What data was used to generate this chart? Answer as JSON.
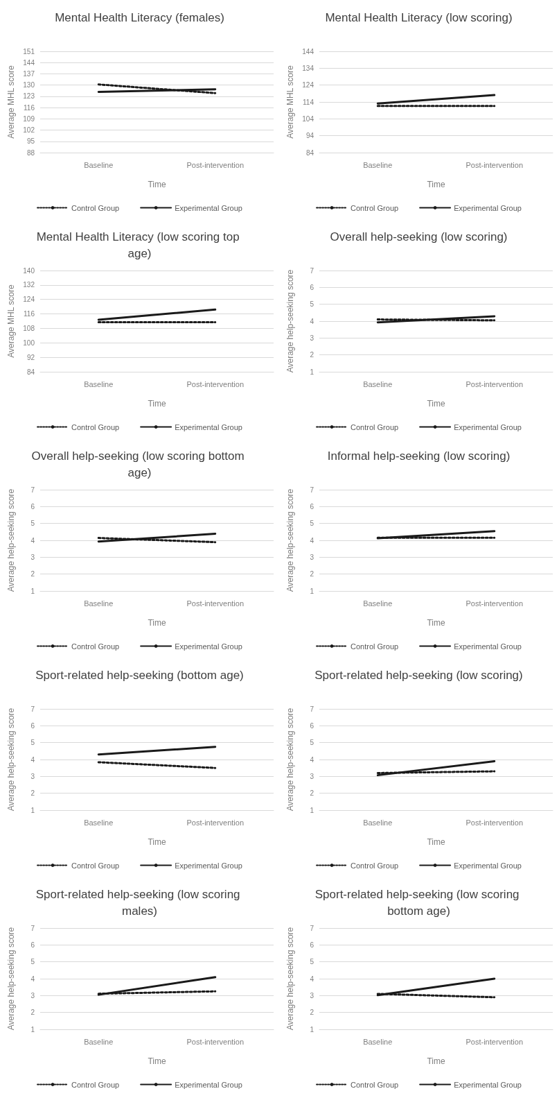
{
  "chart_data": [
    {
      "type": "line",
      "title": "Mental Health Literacy (females)",
      "xlabel": "Time",
      "ylabel": "Average MHL score",
      "categories": [
        "Baseline",
        "Post-intervention"
      ],
      "ylim": [
        88,
        151
      ],
      "yticks": [
        88,
        95,
        102,
        109,
        116,
        123,
        130,
        137,
        144,
        151
      ],
      "grid": "y",
      "legend": "bottom",
      "marker": "none",
      "series": [
        {
          "name": "Control Group",
          "color": "#1a1a1a",
          "line_style": "dotted",
          "values": [
            130.4,
            125
          ]
        },
        {
          "name": "Experimental Group",
          "color": "#1a1a1a",
          "line_style": "solid",
          "values": [
            125.8,
            127.4
          ]
        }
      ]
    },
    {
      "type": "line",
      "title": "Mental Health Literacy (low scoring)",
      "xlabel": "Time",
      "ylabel": "Average MHL score",
      "categories": [
        "Baseline",
        "Post-intervention"
      ],
      "ylim": [
        84,
        144
      ],
      "yticks": [
        84,
        94,
        104,
        114,
        124,
        134,
        144
      ],
      "grid": "y",
      "legend": "bottom",
      "marker": "none",
      "series": [
        {
          "name": "Control Group",
          "color": "#1a1a1a",
          "line_style": "dotted",
          "values": [
            111.6,
            111.6
          ]
        },
        {
          "name": "Experimental Group",
          "color": "#1a1a1a",
          "line_style": "solid",
          "values": [
            113.1,
            118.1
          ]
        }
      ]
    },
    {
      "type": "line",
      "title": "Mental Health Literacy (low scoring top age)",
      "xlabel": "Time",
      "ylabel": "Average MHL score",
      "categories": [
        "Baseline",
        "Post-intervention"
      ],
      "ylim": [
        84,
        140
      ],
      "yticks": [
        84,
        92,
        100,
        108,
        116,
        124,
        132,
        140
      ],
      "grid": "y",
      "legend": "bottom",
      "marker": "none",
      "series": [
        {
          "name": "Control Group",
          "color": "#1a1a1a",
          "line_style": "dotted",
          "values": [
            111.4,
            111.4
          ]
        },
        {
          "name": "Experimental Group",
          "color": "#1a1a1a",
          "line_style": "solid",
          "values": [
            112.8,
            118.4
          ]
        }
      ]
    },
    {
      "type": "line",
      "title": "Overall help-seeking (low scoring)",
      "xlabel": "Time",
      "ylabel": "Average help-seeking score",
      "categories": [
        "Baseline",
        "Post-intervention"
      ],
      "ylim": [
        1,
        7
      ],
      "yticks": [
        1,
        2,
        3,
        4,
        5,
        6,
        7
      ],
      "grid": "y",
      "legend": "bottom",
      "marker": "none",
      "series": [
        {
          "name": "Control Group",
          "color": "#1a1a1a",
          "line_style": "dotted",
          "values": [
            4.1,
            4.05
          ]
        },
        {
          "name": "Experimental Group",
          "color": "#1a1a1a",
          "line_style": "solid",
          "values": [
            3.93,
            4.29
          ]
        }
      ]
    },
    {
      "type": "line",
      "title": "Overall help-seeking (low scoring bottom age)",
      "xlabel": "Time",
      "ylabel": "Average help-seeking score",
      "categories": [
        "Baseline",
        "Post-intervention"
      ],
      "ylim": [
        1,
        7
      ],
      "yticks": [
        1,
        2,
        3,
        4,
        5,
        6,
        7
      ],
      "grid": "y",
      "legend": "bottom",
      "marker": "none",
      "series": [
        {
          "name": "Control Group",
          "color": "#1a1a1a",
          "line_style": "dotted",
          "values": [
            4.14,
            3.89
          ]
        },
        {
          "name": "Experimental Group",
          "color": "#1a1a1a",
          "line_style": "solid",
          "values": [
            3.93,
            4.39
          ]
        }
      ]
    },
    {
      "type": "line",
      "title": "Informal help-seeking (low scoring)",
      "xlabel": "Time",
      "ylabel": "Average help-seeking score",
      "categories": [
        "Baseline",
        "Post-intervention"
      ],
      "ylim": [
        1,
        7
      ],
      "yticks": [
        1,
        2,
        3,
        4,
        5,
        6,
        7
      ],
      "grid": "y",
      "legend": "bottom",
      "marker": "none",
      "series": [
        {
          "name": "Control Group",
          "color": "#1a1a1a",
          "line_style": "dotted",
          "values": [
            4.15,
            4.15
          ]
        },
        {
          "name": "Experimental Group",
          "color": "#1a1a1a",
          "line_style": "solid",
          "values": [
            4.12,
            4.54
          ]
        }
      ]
    },
    {
      "type": "line",
      "title": "Sport-related help-seeking (bottom age)",
      "xlabel": "Time",
      "ylabel": "Average help-seeking score",
      "categories": [
        "Baseline",
        "Post-intervention"
      ],
      "ylim": [
        1,
        7
      ],
      "yticks": [
        1,
        2,
        3,
        4,
        5,
        6,
        7
      ],
      "grid": "y",
      "legend": "bottom",
      "marker": "none",
      "series": [
        {
          "name": "Control Group",
          "color": "#1a1a1a",
          "line_style": "dotted",
          "values": [
            3.84,
            3.5
          ]
        },
        {
          "name": "Experimental Group",
          "color": "#1a1a1a",
          "line_style": "solid",
          "values": [
            4.3,
            4.75
          ]
        }
      ]
    },
    {
      "type": "line",
      "title": "Sport-related help-seeking (low scoring)",
      "xlabel": "Time",
      "ylabel": "Average help-seeking score",
      "categories": [
        "Baseline",
        "Post-intervention"
      ],
      "ylim": [
        1,
        7
      ],
      "yticks": [
        1,
        2,
        3,
        4,
        5,
        6,
        7
      ],
      "grid": "y",
      "legend": "bottom",
      "marker": "none",
      "series": [
        {
          "name": "Control Group",
          "color": "#1a1a1a",
          "line_style": "dotted",
          "values": [
            3.2,
            3.3
          ]
        },
        {
          "name": "Experimental Group",
          "color": "#1a1a1a",
          "line_style": "solid",
          "values": [
            3.07,
            3.9
          ]
        }
      ]
    },
    {
      "type": "line",
      "title": "Sport-related help-seeking (low scoring males)",
      "xlabel": "Time",
      "ylabel": "Average help-seeking score",
      "categories": [
        "Baseline",
        "Post-intervention"
      ],
      "ylim": [
        1,
        7
      ],
      "yticks": [
        1,
        2,
        3,
        4,
        5,
        6,
        7
      ],
      "grid": "y",
      "legend": "bottom",
      "marker": "none",
      "series": [
        {
          "name": "Control Group",
          "color": "#1a1a1a",
          "line_style": "dotted",
          "values": [
            3.11,
            3.25
          ]
        },
        {
          "name": "Experimental Group",
          "color": "#1a1a1a",
          "line_style": "solid",
          "values": [
            3.05,
            4.09
          ]
        }
      ]
    },
    {
      "type": "line",
      "title": "Sport-related help-seeking (low scoring bottom age)",
      "xlabel": "Time",
      "ylabel": "Average help-seeking score",
      "categories": [
        "Baseline",
        "Post-intervention"
      ],
      "ylim": [
        1,
        7
      ],
      "yticks": [
        1,
        2,
        3,
        4,
        5,
        6,
        7
      ],
      "grid": "y",
      "legend": "bottom",
      "marker": "none",
      "series": [
        {
          "name": "Control Group",
          "color": "#1a1a1a",
          "line_style": "dotted",
          "values": [
            3.1,
            2.9
          ]
        },
        {
          "name": "Experimental Group",
          "color": "#1a1a1a",
          "line_style": "solid",
          "values": [
            3.02,
            4.0
          ]
        }
      ]
    }
  ]
}
